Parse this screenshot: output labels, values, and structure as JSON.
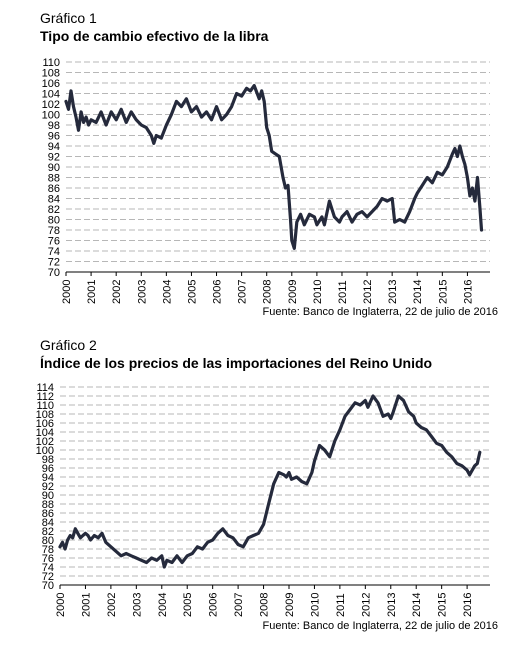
{
  "chart_data": [
    {
      "type": "line",
      "figure_label": "Gráfico 1",
      "title": "Tipo de cambio efectivo de la libra",
      "source": "Fuente: Banco de Inglaterra, 22 de julio de 2016",
      "xlabel": "",
      "ylabel": "",
      "ylim": [
        70,
        110
      ],
      "yticks": [
        70,
        72,
        74,
        76,
        78,
        80,
        82,
        84,
        86,
        88,
        90,
        92,
        94,
        96,
        98,
        100,
        102,
        104,
        106,
        108,
        110
      ],
      "xlim": [
        2000,
        2016.9
      ],
      "xticks": [
        "2000",
        "2001",
        "2002",
        "2003",
        "2004",
        "2005",
        "2006",
        "2007",
        "2008",
        "2009",
        "2010",
        "2011",
        "2012",
        "2013",
        "2014",
        "2015",
        "2016"
      ],
      "grid": true,
      "color": "#252a3c",
      "series": [
        {
          "x": [
            2000.0,
            2000.1,
            2000.2,
            2000.3,
            2000.4,
            2000.5,
            2000.6,
            2000.7,
            2000.8,
            2000.9,
            2001.0,
            2001.2,
            2001.4,
            2001.6,
            2001.8,
            2002.0,
            2002.2,
            2002.4,
            2002.6,
            2002.8,
            2003.0,
            2003.2,
            2003.4,
            2003.5,
            2003.6,
            2003.8,
            2004.0,
            2004.2,
            2004.4,
            2004.6,
            2004.8,
            2005.0,
            2005.2,
            2005.4,
            2005.6,
            2005.8,
            2006.0,
            2006.2,
            2006.4,
            2006.6,
            2006.8,
            2007.0,
            2007.2,
            2007.35,
            2007.5,
            2007.7,
            2007.8,
            2007.9,
            2008.0,
            2008.1,
            2008.2,
            2008.35,
            2008.5,
            2008.65,
            2008.75,
            2008.85,
            2008.95,
            2009.0,
            2009.1,
            2009.2,
            2009.35,
            2009.5,
            2009.7,
            2009.9,
            2010.0,
            2010.2,
            2010.3,
            2010.5,
            2010.7,
            2010.9,
            2011.0,
            2011.2,
            2011.4,
            2011.6,
            2011.8,
            2012.0,
            2012.2,
            2012.4,
            2012.6,
            2012.8,
            2013.0,
            2013.1,
            2013.3,
            2013.5,
            2013.7,
            2013.9,
            2014.0,
            2014.2,
            2014.4,
            2014.6,
            2014.8,
            2015.0,
            2015.2,
            2015.4,
            2015.5,
            2015.6,
            2015.7,
            2015.8,
            2015.9,
            2016.0,
            2016.1,
            2016.2,
            2016.3,
            2016.4,
            2016.5,
            2016.56
          ],
          "values": [
            102.5,
            101.0,
            104.5,
            101.5,
            99.5,
            97.0,
            100.5,
            98.5,
            99.5,
            98.0,
            99.0,
            98.5,
            100.5,
            98.0,
            100.5,
            99.0,
            101.0,
            98.5,
            100.5,
            99.0,
            98.0,
            97.5,
            96.0,
            94.5,
            96.0,
            95.5,
            98.0,
            100.0,
            102.5,
            101.5,
            103.0,
            100.5,
            101.5,
            99.5,
            100.5,
            99.0,
            101.5,
            99.0,
            100.0,
            101.5,
            104.0,
            103.5,
            105.0,
            104.5,
            105.5,
            103.0,
            104.5,
            102.5,
            97.5,
            96.0,
            93.0,
            92.5,
            92.0,
            88.0,
            86.0,
            86.5,
            80.0,
            76.0,
            74.5,
            79.5,
            81.0,
            79.0,
            81.0,
            80.5,
            79.0,
            80.5,
            79.0,
            83.5,
            80.5,
            79.5,
            80.5,
            81.5,
            79.5,
            81.0,
            81.5,
            80.5,
            81.5,
            82.5,
            84.0,
            83.5,
            84.0,
            79.5,
            80.0,
            79.5,
            81.5,
            84.0,
            85.0,
            86.5,
            88.0,
            87.0,
            89.0,
            88.5,
            90.0,
            92.5,
            93.5,
            92.0,
            94.0,
            92.0,
            90.5,
            88.0,
            84.5,
            86.0,
            83.5,
            88.0,
            82.0,
            78.0
          ]
        }
      ]
    },
    {
      "type": "line",
      "figure_label": "Gráfico 2",
      "title": "Índice de los precios de las importaciones del Reino Unido",
      "source": "Fuente: Banco de Inglaterra, 22 de julio de 2016",
      "xlabel": "",
      "ylabel": "",
      "ylim": [
        70,
        114
      ],
      "yticks": [
        70,
        72,
        74,
        76,
        78,
        80,
        82,
        84,
        86,
        88,
        90,
        92,
        94,
        96,
        98,
        100,
        102,
        104,
        106,
        108,
        110,
        112,
        114
      ],
      "xlim": [
        2000,
        2016.9
      ],
      "xticks": [
        "2000",
        "2001",
        "2002",
        "2003",
        "2004",
        "2005",
        "2006",
        "2007",
        "2008",
        "2009",
        "2010",
        "2011",
        "2012",
        "2013",
        "2014",
        "2015",
        "2016"
      ],
      "grid": true,
      "color": "#252a3c",
      "series": [
        {
          "x": [
            2000.0,
            2000.1,
            2000.2,
            2000.3,
            2000.4,
            2000.5,
            2000.6,
            2000.7,
            2000.8,
            2000.9,
            2001.0,
            2001.1,
            2001.2,
            2001.35,
            2001.5,
            2001.65,
            2001.8,
            2002.0,
            2002.2,
            2002.4,
            2002.6,
            2002.8,
            2003.0,
            2003.2,
            2003.4,
            2003.6,
            2003.8,
            2004.0,
            2004.1,
            2004.2,
            2004.4,
            2004.6,
            2004.8,
            2005.0,
            2005.2,
            2005.4,
            2005.6,
            2005.8,
            2006.0,
            2006.2,
            2006.4,
            2006.6,
            2006.8,
            2007.0,
            2007.2,
            2007.4,
            2007.6,
            2007.8,
            2008.0,
            2008.2,
            2008.4,
            2008.6,
            2008.8,
            2008.9,
            2009.0,
            2009.1,
            2009.3,
            2009.5,
            2009.7,
            2009.9,
            2010.0,
            2010.2,
            2010.4,
            2010.6,
            2010.8,
            2011.0,
            2011.2,
            2011.4,
            2011.6,
            2011.8,
            2012.0,
            2012.1,
            2012.3,
            2012.5,
            2012.7,
            2012.9,
            2013.0,
            2013.1,
            2013.3,
            2013.5,
            2013.7,
            2013.9,
            2014.0,
            2014.2,
            2014.4,
            2014.6,
            2014.8,
            2015.0,
            2015.2,
            2015.4,
            2015.6,
            2015.8,
            2016.0,
            2016.1,
            2016.2,
            2016.3,
            2016.4,
            2016.5
          ],
          "values": [
            78.5,
            79.5,
            78.0,
            80.0,
            81.0,
            80.5,
            82.5,
            81.5,
            80.5,
            81.0,
            81.5,
            81.0,
            80.0,
            81.0,
            80.5,
            81.5,
            79.5,
            78.5,
            77.5,
            76.5,
            77.0,
            76.5,
            76.0,
            75.5,
            75.0,
            76.0,
            75.5,
            76.5,
            74.0,
            75.5,
            75.0,
            76.5,
            75.0,
            76.5,
            77.0,
            78.5,
            78.0,
            79.5,
            80.0,
            81.5,
            82.5,
            81.0,
            80.5,
            79.0,
            78.5,
            80.5,
            81.0,
            81.5,
            83.5,
            88.0,
            92.5,
            95.0,
            94.5,
            94.0,
            95.0,
            93.5,
            94.0,
            93.0,
            92.5,
            95.0,
            97.5,
            101.0,
            100.0,
            98.5,
            102.0,
            104.5,
            107.5,
            109.0,
            110.5,
            110.0,
            111.0,
            109.5,
            112.0,
            110.5,
            107.5,
            108.0,
            107.0,
            108.5,
            112.0,
            111.0,
            108.5,
            107.5,
            106.0,
            105.0,
            104.5,
            103.0,
            101.5,
            101.0,
            99.5,
            98.5,
            97.0,
            96.5,
            95.5,
            94.5,
            95.5,
            96.5,
            97.0,
            99.5
          ]
        }
      ]
    }
  ]
}
